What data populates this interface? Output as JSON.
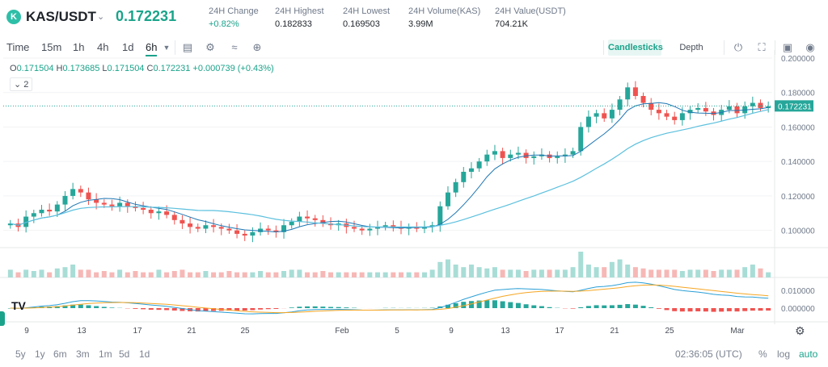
{
  "header": {
    "pair": "KAS/USDT",
    "price": "0.172231",
    "stats": [
      {
        "label": "24H Change",
        "value": "+0.82%",
        "positive": true
      },
      {
        "label": "24H Highest",
        "value": "0.182833"
      },
      {
        "label": "24H Lowest",
        "value": "0.169503"
      },
      {
        "label": "24H Volume(KAS)",
        "value": "3.99M"
      },
      {
        "label": "24H Value(USDT)",
        "value": "704.21K"
      }
    ]
  },
  "toolbar": {
    "intervals": [
      "Time",
      "15m",
      "1h",
      "4h",
      "1d",
      "6h"
    ],
    "active_interval": "6h",
    "candlesticks_label": "Candlesticks",
    "depth_label": "Depth"
  },
  "legend": {
    "o_key": "O",
    "o_val": "0.171504",
    "h_key": "H",
    "h_val": "0.173685",
    "l_key": "L",
    "l_val": "0.171504",
    "c_key": "C",
    "c_val": "0.172231",
    "change": "+0.000739 (+0.43%)",
    "indicators_toggle": "2"
  },
  "price_axis": {
    "ticks": [
      "0.200000",
      "0.180000",
      "0.160000",
      "0.140000",
      "0.120000",
      "0.100000"
    ],
    "last_price_tag": "0.172231"
  },
  "macd_axis": {
    "ticks": [
      "0.010000",
      "0.000000"
    ]
  },
  "time_axis": {
    "labels": [
      "9",
      "13",
      "17",
      "21",
      "25",
      "Feb",
      "5",
      "9",
      "13",
      "17",
      "21",
      "25",
      "Mar"
    ]
  },
  "bottom": {
    "ranges": [
      "5y",
      "1y",
      "6m",
      "3m",
      "1m",
      "5d",
      "1d"
    ],
    "clock": "02:36:05 (UTC)",
    "percent": "%",
    "log": "log",
    "auto": "auto"
  },
  "colors": {
    "up": "#26a69a",
    "down": "#ef5350",
    "ma_fast": "#1f77b4",
    "ma_slow": "#5bc0de",
    "macd": "#2a9fd6",
    "signal": "#f5a623"
  },
  "chart_data": {
    "type": "candlestick",
    "ylim": [
      0.09,
      0.2
    ],
    "last": 0.172231,
    "closes": [
      0.104,
      0.102,
      0.108,
      0.11,
      0.112,
      0.111,
      0.115,
      0.12,
      0.124,
      0.122,
      0.118,
      0.116,
      0.115,
      0.114,
      0.116,
      0.114,
      0.113,
      0.112,
      0.11,
      0.111,
      0.109,
      0.106,
      0.104,
      0.102,
      0.101,
      0.103,
      0.102,
      0.101,
      0.1,
      0.098,
      0.097,
      0.099,
      0.101,
      0.1,
      0.099,
      0.103,
      0.105,
      0.108,
      0.107,
      0.106,
      0.104,
      0.103,
      0.104,
      0.102,
      0.101,
      0.1,
      0.101,
      0.102,
      0.103,
      0.102,
      0.101,
      0.102,
      0.101,
      0.102,
      0.103,
      0.114,
      0.122,
      0.128,
      0.134,
      0.136,
      0.14,
      0.144,
      0.146,
      0.142,
      0.144,
      0.145,
      0.142,
      0.143,
      0.144,
      0.142,
      0.143,
      0.144,
      0.146,
      0.16,
      0.166,
      0.168,
      0.165,
      0.17,
      0.176,
      0.183,
      0.178,
      0.174,
      0.17,
      0.168,
      0.166,
      0.164,
      0.168,
      0.17,
      0.171,
      0.169,
      0.167,
      0.17,
      0.172,
      0.168,
      0.172,
      0.174,
      0.171,
      0.172
    ],
    "volume": [
      0.3,
      0.2,
      0.3,
      0.25,
      0.3,
      0.2,
      0.35,
      0.4,
      0.5,
      0.3,
      0.3,
      0.2,
      0.25,
      0.2,
      0.3,
      0.2,
      0.25,
      0.2,
      0.2,
      0.3,
      0.2,
      0.25,
      0.3,
      0.2,
      0.2,
      0.25,
      0.2,
      0.2,
      0.25,
      0.2,
      0.2,
      0.2,
      0.25,
      0.2,
      0.2,
      0.25,
      0.3,
      0.3,
      0.2,
      0.2,
      0.25,
      0.2,
      0.2,
      0.2,
      0.2,
      0.2,
      0.2,
      0.2,
      0.2,
      0.2,
      0.2,
      0.2,
      0.2,
      0.2,
      0.3,
      0.6,
      0.7,
      0.5,
      0.4,
      0.5,
      0.4,
      0.35,
      0.4,
      0.3,
      0.3,
      0.3,
      0.25,
      0.3,
      0.3,
      0.3,
      0.3,
      0.3,
      0.4,
      1.0,
      0.5,
      0.4,
      0.4,
      0.6,
      0.7,
      0.5,
      0.4,
      0.35,
      0.3,
      0.3,
      0.3,
      0.3,
      0.25,
      0.3,
      0.3,
      0.3,
      0.25,
      0.3,
      0.3,
      0.3,
      0.4,
      0.5,
      0.35,
      0.2
    ]
  }
}
